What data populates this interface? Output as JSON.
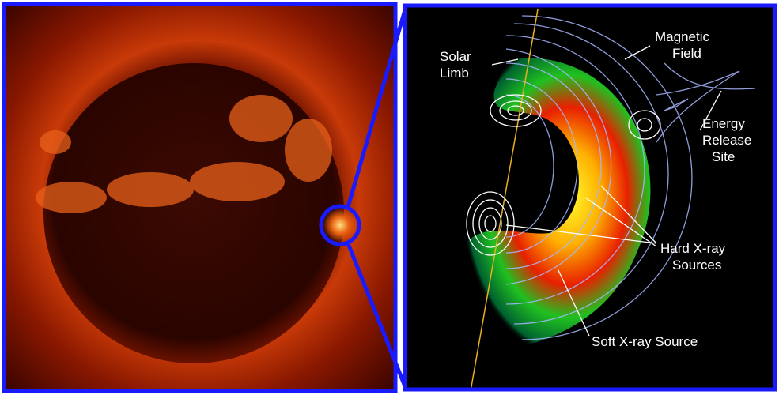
{
  "labels": [
    {
      "lines": [
        "Magnetic",
        "Field"
      ]
    },
    {
      "lines": [
        "Solar",
        "Limb"
      ]
    },
    {
      "lines": [
        "Energy",
        "Release",
        "Site"
      ]
    },
    {
      "lines": [
        "Hard X-ray",
        "Sources"
      ]
    },
    {
      "lines": [
        "Soft X-ray Source"
      ]
    }
  ]
}
